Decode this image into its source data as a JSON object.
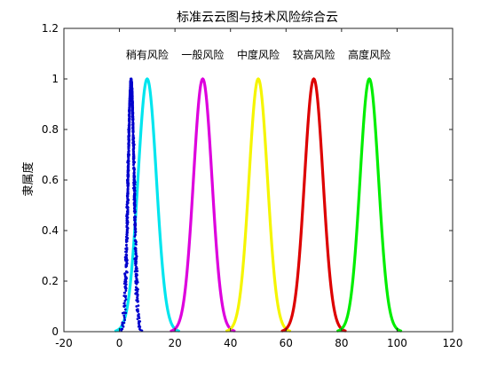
{
  "chart_data": {
    "type": "line",
    "title": "标准云云图与技术风险综合云",
    "xlabel": "",
    "ylabel": "隶属度",
    "xlim": [
      -20,
      120
    ],
    "ylim": [
      0,
      1.2
    ],
    "xticks": [
      -20,
      0,
      20,
      40,
      60,
      80,
      100,
      120
    ],
    "yticks": [
      0,
      0.2,
      0.4,
      0.6,
      0.8,
      1,
      1.2
    ],
    "grid": false,
    "series": [
      {
        "name": "稍有风险",
        "Ex": 10,
        "En": 3.33,
        "color": "#00e5ee",
        "style": "curve"
      },
      {
        "name": "一般风险",
        "Ex": 30,
        "En": 3.33,
        "color": "#dd00dd",
        "style": "curve"
      },
      {
        "name": "中度风险",
        "Ex": 50,
        "En": 3.33,
        "color": "#f5f500",
        "style": "curve"
      },
      {
        "name": "较高风险",
        "Ex": 70,
        "En": 3.33,
        "color": "#dd0000",
        "style": "curve"
      },
      {
        "name": "高度风险",
        "Ex": 90,
        "En": 3.33,
        "color": "#00ee00",
        "style": "curve"
      },
      {
        "name": "",
        "Ex": 4.2,
        "En": 1.1,
        "color": "#0000cc",
        "style": "drops"
      }
    ]
  }
}
